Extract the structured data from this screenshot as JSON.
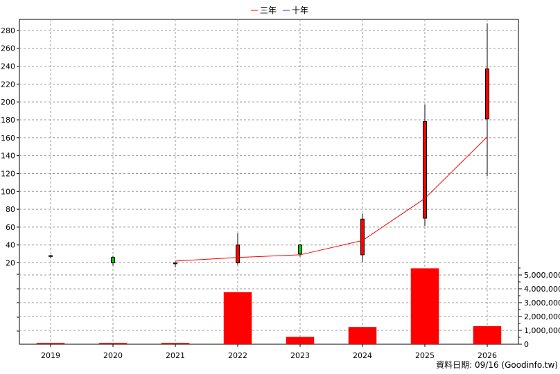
{
  "chart_data": [
    {
      "type": "candlestick",
      "categories": [
        "2019",
        "2020",
        "2021",
        "2022",
        "2023",
        "2024",
        "2025",
        "2026"
      ],
      "ohlc": [
        {
          "open": 28,
          "high": 29,
          "low": 25,
          "close": 28,
          "color": "#ff0000"
        },
        {
          "open": 26,
          "high": 28,
          "low": 17,
          "close": 20,
          "color": "#00cc00"
        },
        {
          "open": 19,
          "high": 21,
          "low": 15,
          "close": 20,
          "color": "#ff0000"
        },
        {
          "open": 20,
          "high": 53,
          "low": 18,
          "close": 40,
          "color": "#ff0000"
        },
        {
          "open": 40,
          "high": 41,
          "low": 27,
          "close": 30,
          "color": "#00cc00"
        },
        {
          "open": 29,
          "high": 75,
          "low": 21,
          "close": 69,
          "color": "#ff0000"
        },
        {
          "open": 70,
          "high": 197,
          "low": 61,
          "close": 178,
          "color": "#ff0000"
        },
        {
          "open": 181,
          "high": 288,
          "low": 117,
          "close": 237,
          "color": "#ff0000"
        }
      ],
      "series": [
        {
          "name": "三年",
          "color": "#ff0000",
          "values": [
            null,
            null,
            22,
            26,
            29,
            45,
            92,
            161
          ]
        },
        {
          "name": "十年",
          "color": "#8000ff",
          "values": [
            null,
            null,
            null,
            null,
            null,
            null,
            null,
            null
          ]
        }
      ],
      "ylim": [
        15,
        290
      ],
      "yticks": [
        20,
        40,
        60,
        80,
        100,
        120,
        140,
        160,
        180,
        200,
        220,
        240,
        260,
        280
      ]
    },
    {
      "type": "bar",
      "categories": [
        "2019",
        "2020",
        "2021",
        "2022",
        "2023",
        "2024",
        "2025",
        "2026"
      ],
      "values": [
        0,
        0,
        0,
        3750000,
        530000,
        1240000,
        5480000,
        1300000
      ],
      "ylim": [
        0,
        5800000
      ],
      "yticks": [
        0,
        1000000,
        2000000,
        3000000,
        4000000,
        5000000
      ],
      "ytick_labels": [
        "0",
        "1,000,000",
        "2,000,000",
        "3,000,000",
        "4,000,000",
        "5,000,000"
      ],
      "color": "#ff0000"
    }
  ],
  "legend": [
    {
      "label": "三年",
      "color": "#ff0000"
    },
    {
      "label": "十年",
      "color": "#8000ff"
    }
  ],
  "footer": "資料日期: 09/16  (Goodinfo.tw)"
}
